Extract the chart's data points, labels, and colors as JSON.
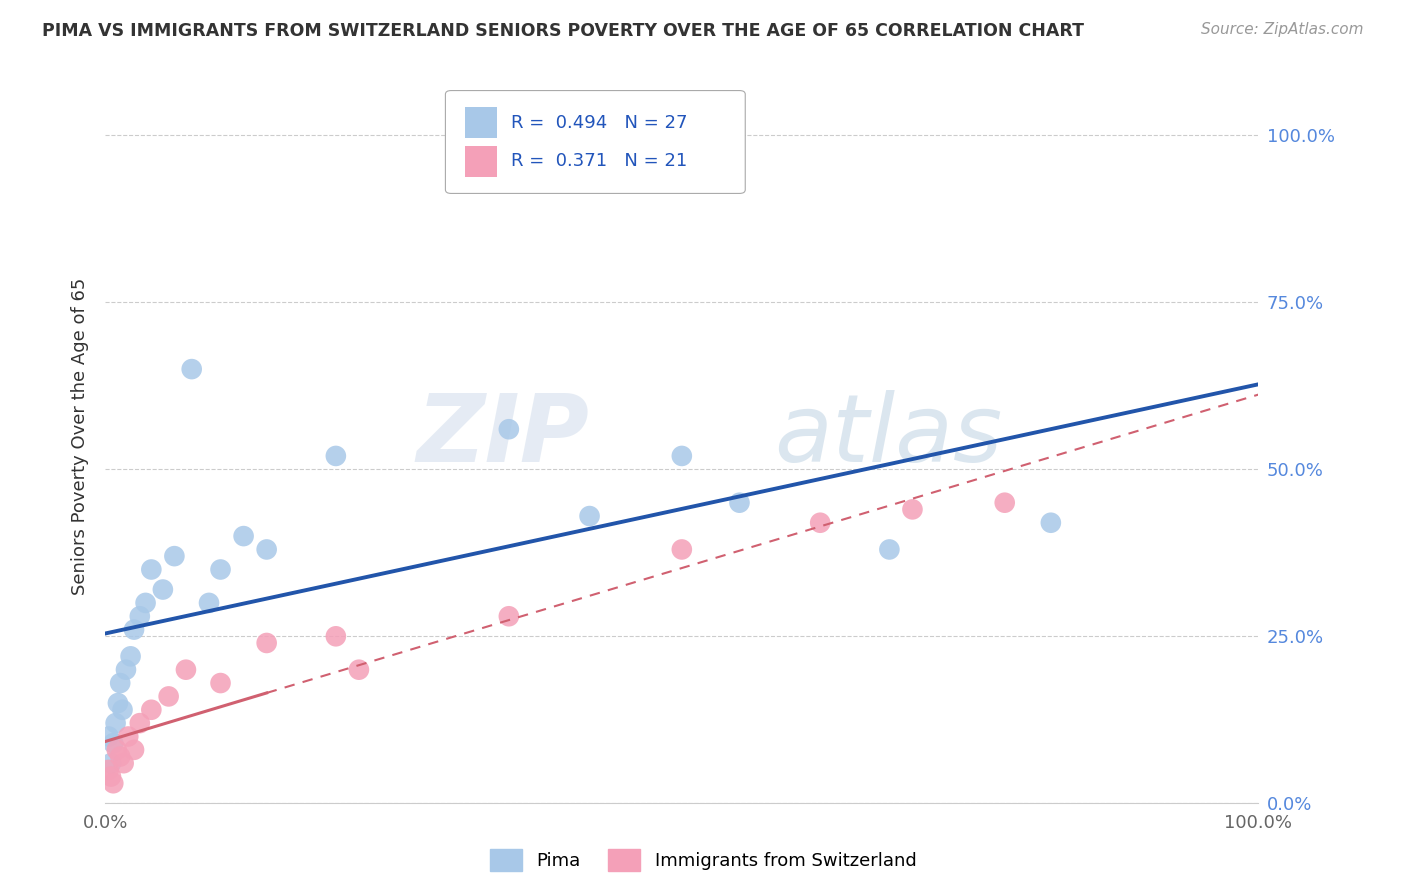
{
  "title": "PIMA VS IMMIGRANTS FROM SWITZERLAND SENIORS POVERTY OVER THE AGE OF 65 CORRELATION CHART",
  "source": "Source: ZipAtlas.com",
  "ylabel": "Seniors Poverty Over the Age of 65",
  "legend_blue_label": "Pima",
  "legend_pink_label": "Immigrants from Switzerland",
  "legend_blue_R": "0.494",
  "legend_blue_N": "27",
  "legend_pink_R": "0.371",
  "legend_pink_N": "21",
  "blue_color": "#a8c8e8",
  "pink_color": "#f4a0b8",
  "blue_line_color": "#2255aa",
  "pink_line_color": "#d06070",
  "watermark_zip": "ZIP",
  "watermark_atlas": "atlas",
  "grid_color": "#cccccc",
  "xlim": [
    0,
    100
  ],
  "ylim": [
    0,
    110
  ],
  "yticks": [
    0,
    25,
    50,
    75,
    100
  ],
  "ytick_labels": [
    "0.0%",
    "25.0%",
    "50.0%",
    "75.0%",
    "100.0%"
  ],
  "pima_x": [
    0.3,
    0.5,
    0.7,
    0.9,
    1.1,
    1.3,
    1.5,
    1.8,
    2.2,
    2.5,
    3.0,
    3.5,
    4.0,
    5.0,
    6.0,
    7.5,
    9.0,
    10.0,
    12.0,
    14.0,
    20.0,
    35.0,
    42.0,
    50.0,
    55.0,
    68.0,
    82.0
  ],
  "pima_y": [
    10.0,
    6.0,
    9.0,
    12.0,
    15.0,
    18.0,
    14.0,
    20.0,
    22.0,
    26.0,
    28.0,
    30.0,
    35.0,
    32.0,
    37.0,
    65.0,
    30.0,
    35.0,
    40.0,
    38.0,
    52.0,
    56.0,
    43.0,
    52.0,
    45.0,
    38.0,
    42.0
  ],
  "swiss_x": [
    0.3,
    0.5,
    0.7,
    1.0,
    1.3,
    1.6,
    2.0,
    2.5,
    3.0,
    4.0,
    5.5,
    7.0,
    10.0,
    14.0,
    20.0,
    22.0,
    35.0,
    50.0,
    62.0,
    70.0,
    78.0
  ],
  "swiss_y": [
    5.0,
    4.0,
    3.0,
    8.0,
    7.0,
    6.0,
    10.0,
    8.0,
    12.0,
    14.0,
    16.0,
    20.0,
    18.0,
    24.0,
    25.0,
    20.0,
    28.0,
    38.0,
    42.0,
    44.0,
    45.0
  ],
  "pink_solid_end": 14.0
}
